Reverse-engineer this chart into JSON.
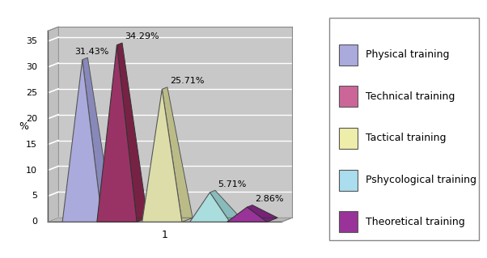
{
  "series": [
    {
      "label": "Physical training",
      "value": 31.43,
      "front_color": "#aaaadd",
      "side_color": "#8888bb",
      "edge_color": "#555555"
    },
    {
      "label": "Technical training",
      "value": 34.29,
      "front_color": "#993366",
      "side_color": "#772244",
      "edge_color": "#333333"
    },
    {
      "label": "Tactical training",
      "value": 25.71,
      "front_color": "#ddddaa",
      "side_color": "#bbbb88",
      "edge_color": "#555555"
    },
    {
      "label": "Pshycological training",
      "value": 5.71,
      "front_color": "#aadddd",
      "side_color": "#88bbbb",
      "edge_color": "#555555"
    },
    {
      "label": "Theoretical training",
      "value": 2.86,
      "front_color": "#993399",
      "side_color": "#772277",
      "edge_color": "#333333"
    }
  ],
  "legend_colors": [
    "#aaaadd",
    "#cc6699",
    "#eeeeaa",
    "#aaddee",
    "#993399"
  ],
  "ylabel": "%",
  "ylim": [
    0,
    37
  ],
  "yticks": [
    0,
    5,
    10,
    15,
    20,
    25,
    30,
    35
  ],
  "background_color": "#ffffff",
  "wall_color": "#c8c8c8",
  "wall_stripe_color": "#b0b0b0",
  "floor_color": "#b8b8b8",
  "gridline_color": "#ffffff",
  "label_fontsize": 8,
  "legend_fontsize": 9
}
